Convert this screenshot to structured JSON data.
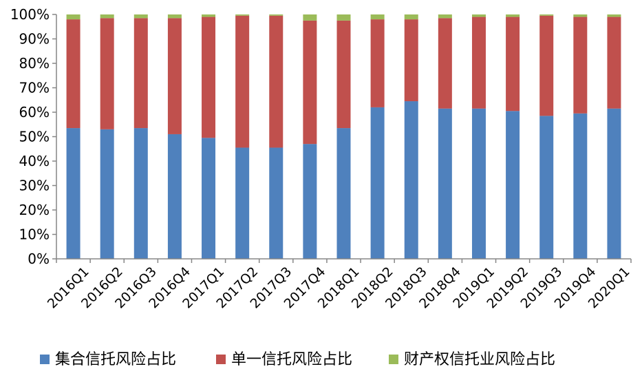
{
  "chart_data": {
    "type": "bar",
    "stacked": true,
    "categories": [
      "2016Q1",
      "2016Q2",
      "2016Q3",
      "2016Q4",
      "2017Q1",
      "2017Q2",
      "2017Q3",
      "2017Q4",
      "2018Q1",
      "2018Q2",
      "2018Q3",
      "2018Q4",
      "2019Q1",
      "2019Q2",
      "2019Q3",
      "2019Q4",
      "2020Q1"
    ],
    "series": [
      {
        "name": "集合信托风险占比",
        "color": "#4F81BD",
        "values": [
          53.5,
          53,
          53.5,
          51,
          49.5,
          45.5,
          45.5,
          47,
          53.5,
          62,
          64.5,
          61.5,
          61.5,
          60.5,
          58.5,
          59.5,
          61.5
        ]
      },
      {
        "name": "单一信托风险占比",
        "color": "#C0504D",
        "values": [
          44.5,
          45.5,
          45,
          47.5,
          49.5,
          54,
          54,
          50.5,
          44,
          36,
          33.5,
          37,
          37.5,
          38.5,
          41,
          39.5,
          37.5
        ]
      },
      {
        "name": "财产权信托业风险占比",
        "color": "#9BBB59",
        "values": [
          2,
          1.5,
          1.5,
          1.5,
          1,
          0.5,
          0.5,
          2.5,
          2.5,
          2,
          2,
          1.5,
          1,
          1,
          0.5,
          1,
          1
        ]
      }
    ],
    "yticks": [
      "0%",
      "10%",
      "20%",
      "30%",
      "40%",
      "50%",
      "60%",
      "70%",
      "80%",
      "90%",
      "100%"
    ],
    "ylim": [
      0,
      100
    ],
    "grid": false,
    "legend_position": "bottom"
  }
}
